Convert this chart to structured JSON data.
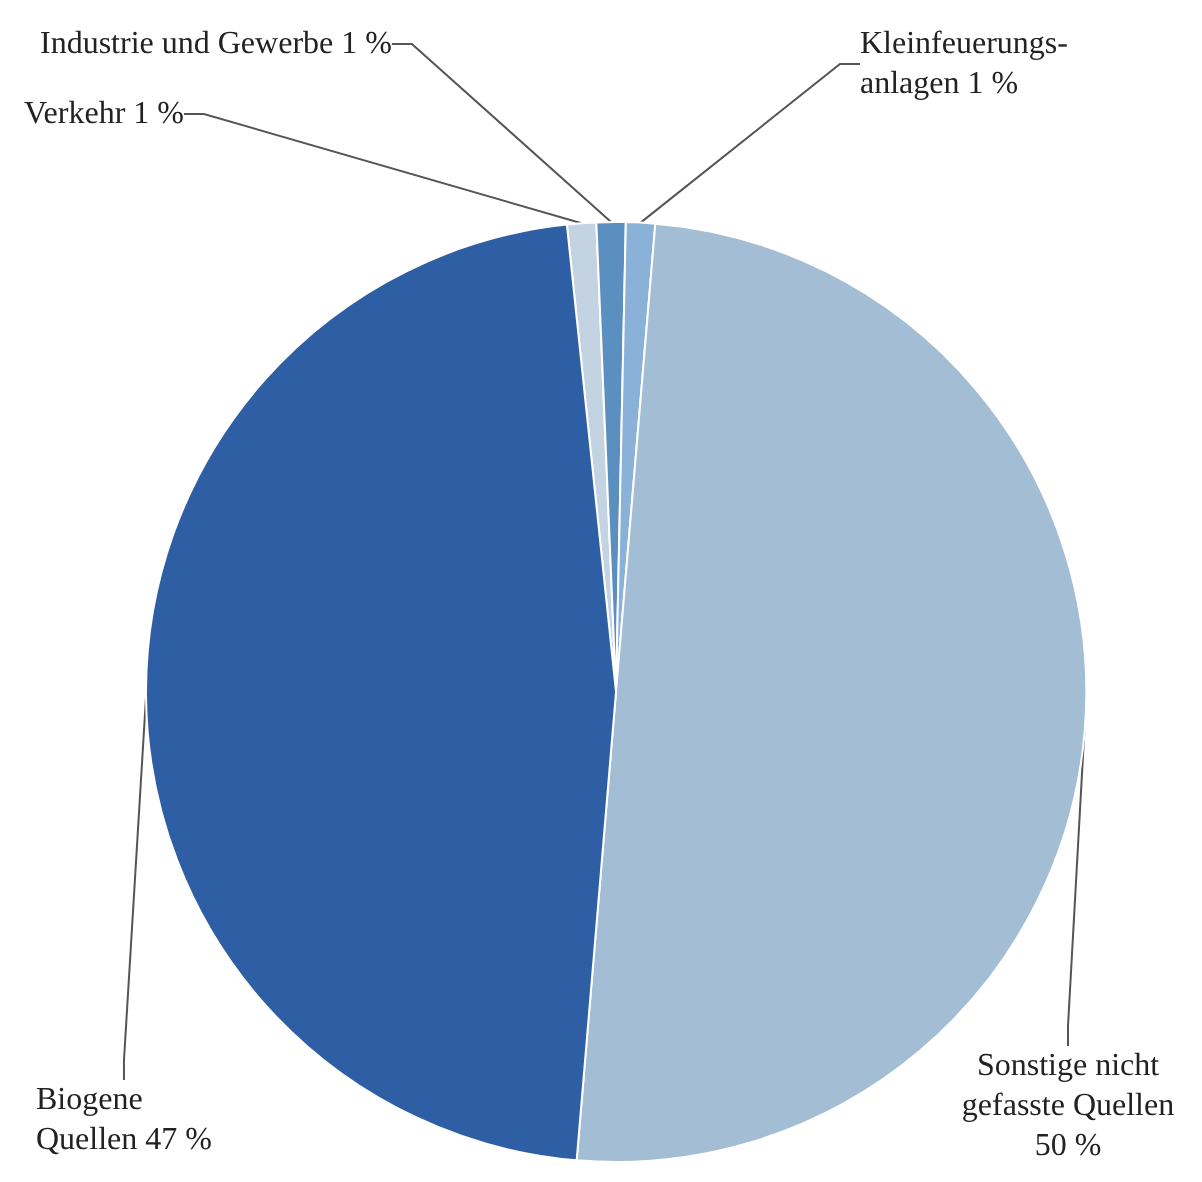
{
  "chart_data": {
    "type": "pie",
    "categories": [
      "Verkehr",
      "Industrie und Gewerbe",
      "Kleinfeuerungs-\nanlagen",
      "Sonstige nicht\ngefasste Quellen",
      "Biogene\nQuellen"
    ],
    "values": [
      1,
      1,
      1,
      50,
      47
    ],
    "value_labels": [
      "1 %",
      "1 %",
      "1 %",
      "50 %",
      "47 %"
    ],
    "colors": [
      "#c3d3e2",
      "#5b8fc0",
      "#8ab2d8",
      "#a3bdd5",
      "#2e5fa4"
    ],
    "legend": false
  }
}
